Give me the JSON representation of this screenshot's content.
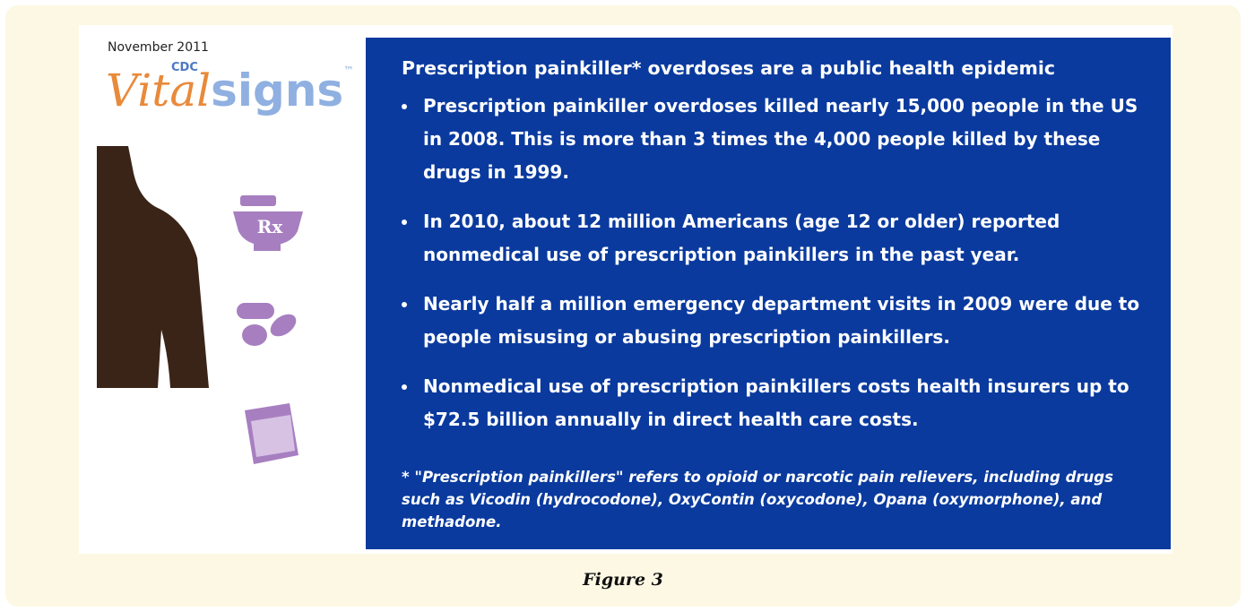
{
  "left_panel": {
    "date": "November 2011",
    "brand_small": "CDC",
    "brand_vital": "Vital",
    "brand_signs": "signs",
    "trademark": "™",
    "icon_rx": "Rx"
  },
  "main_panel": {
    "heading": "Prescription painkiller* overdoses are a public health epidemic",
    "bullets": [
      "Prescription painkiller overdoses killed nearly 15,000 people in the US in 2008. This is more than 3 times the 4,000 people killed by these drugs in 1999.",
      "In 2010, about 12 million Americans (age 12 or older) reported nonmedical use of prescription painkillers in the past year.",
      "Nearly half a million emergency department visits in 2009 were due to people misusing or abusing prescription painkillers.",
      "Nonmedical use of prescription painkillers costs health insurers up to $72.5 billion annually in direct health care costs."
    ],
    "footnote": "* \"Prescription painkillers\" refers to opioid or narcotic pain relievers, including drugs such as Vicodin (hydrocodone), OxyContin (oxycodone), Opana (oxymorphone), and methadone."
  },
  "caption": "Figure 3"
}
